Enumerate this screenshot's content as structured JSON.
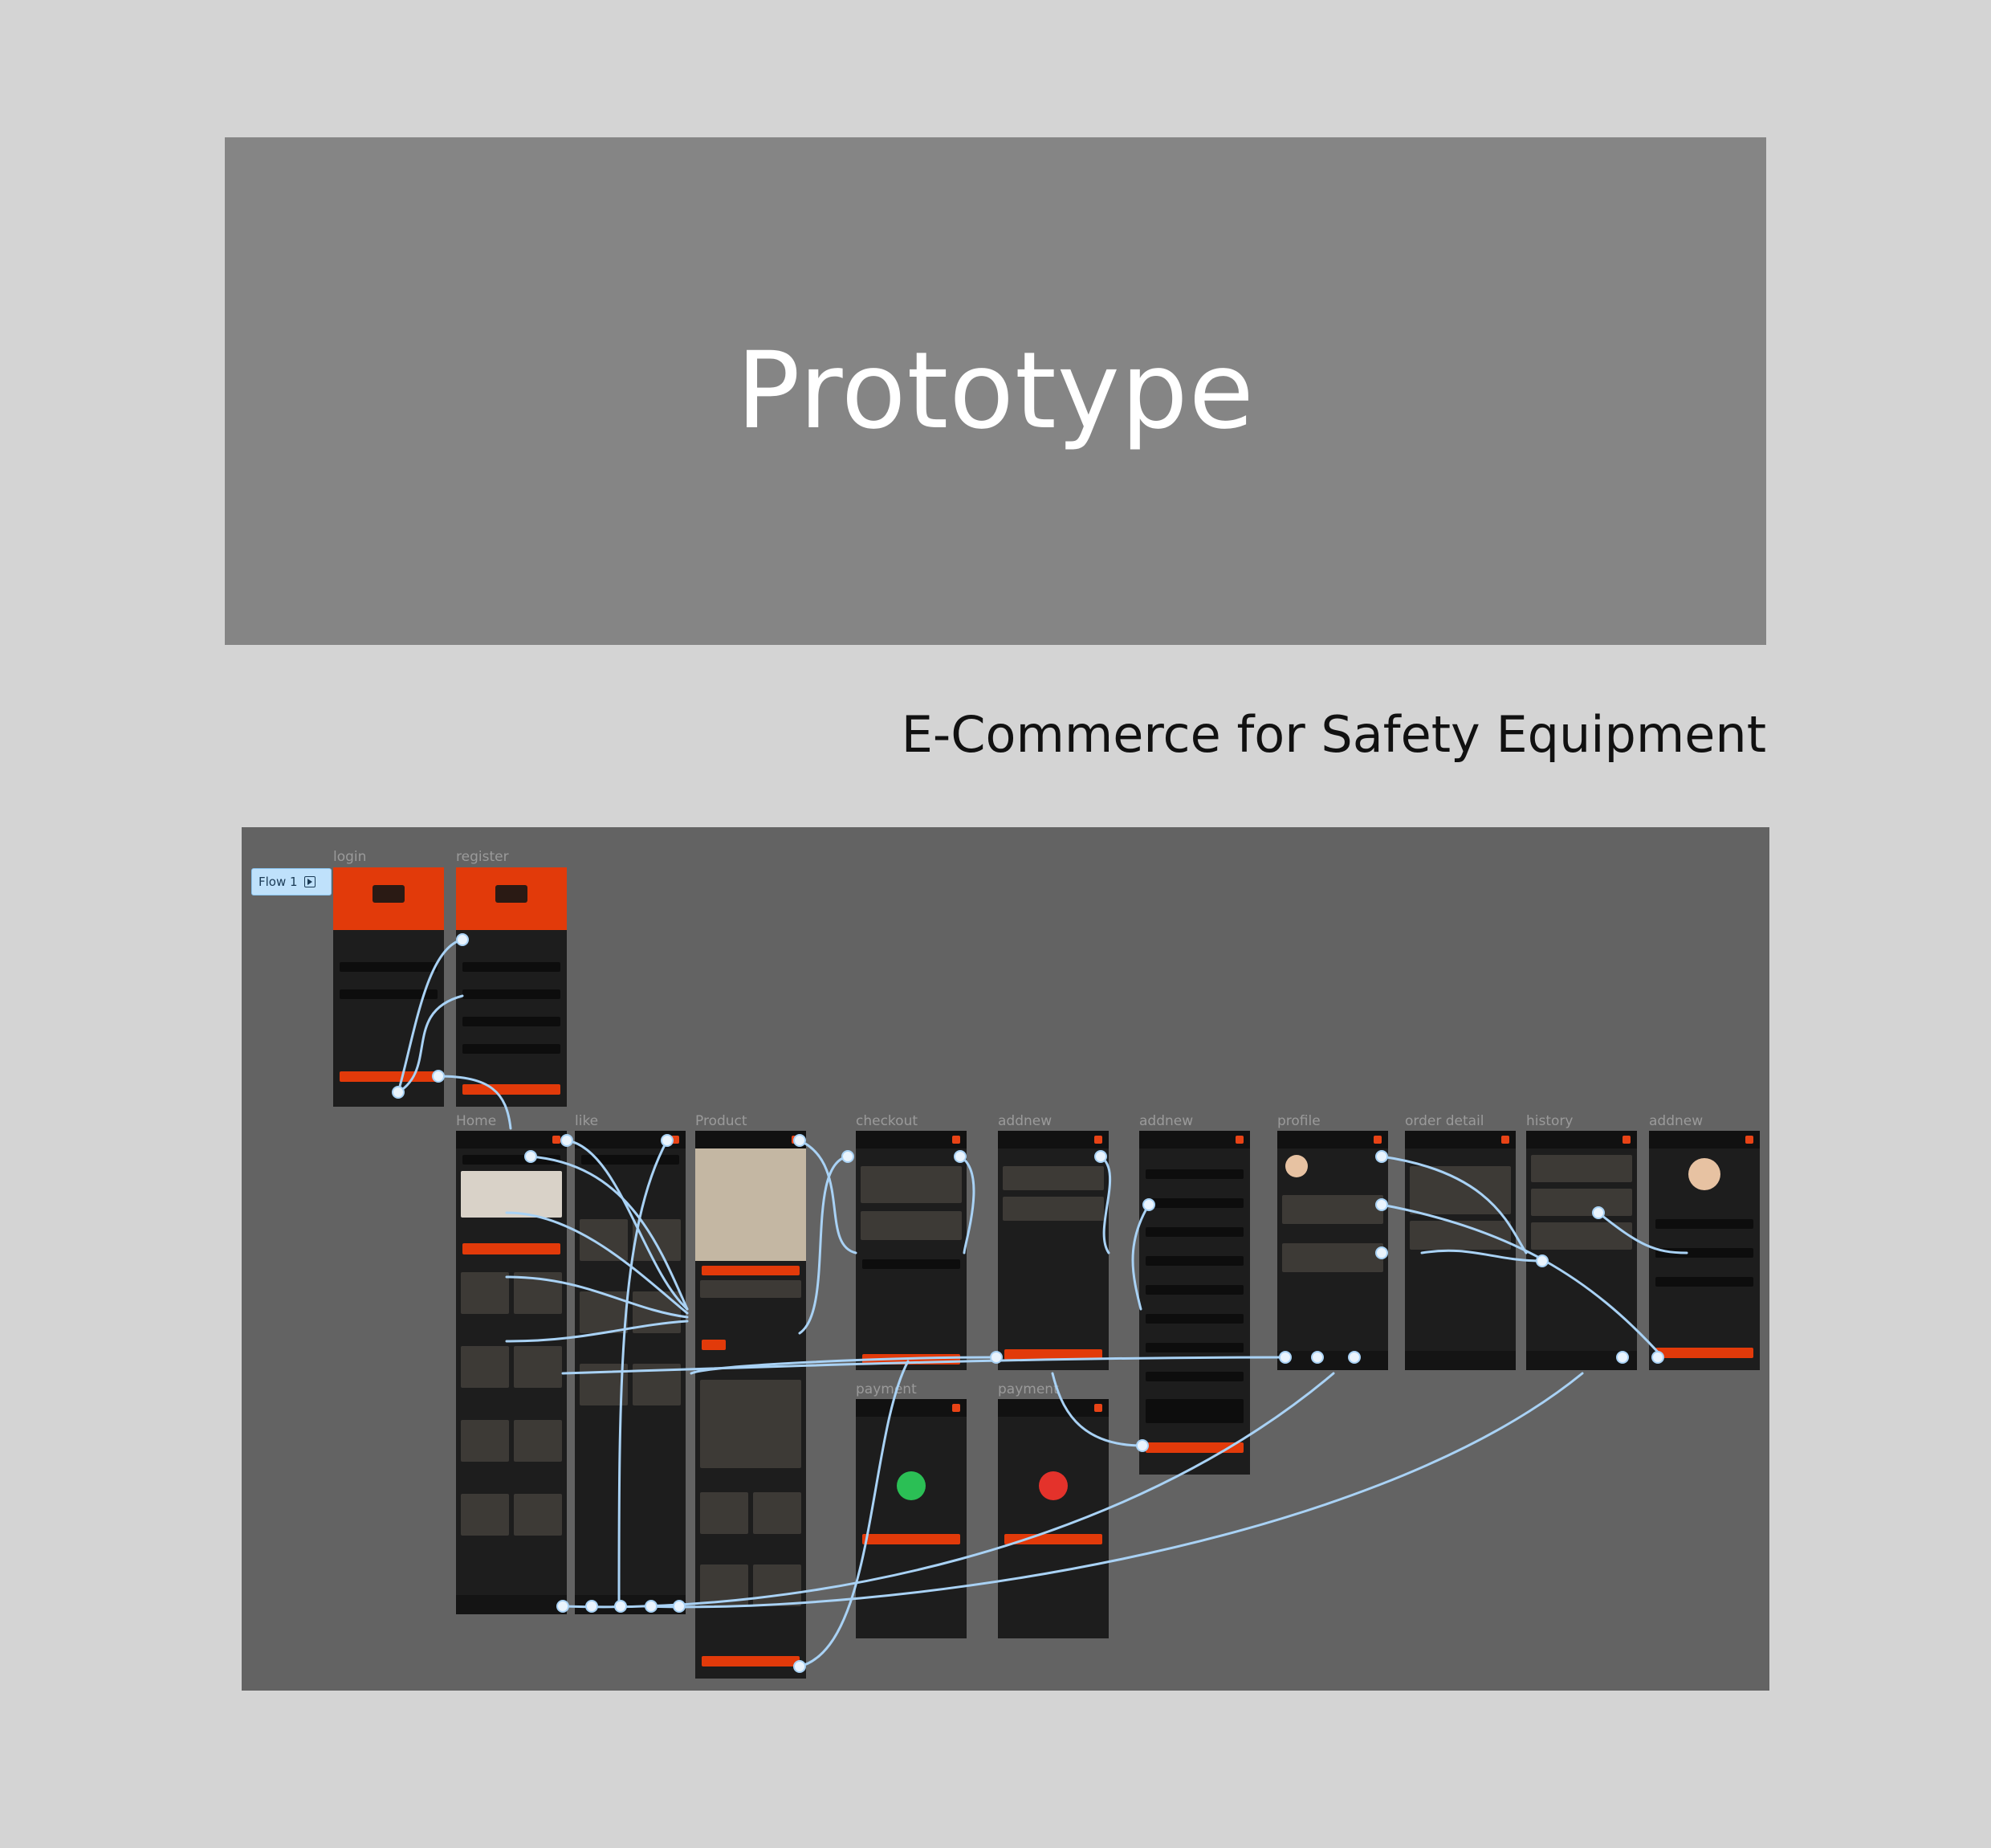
{
  "banner": {
    "title": "Prototype"
  },
  "subtitle": "E-Commerce for Safety Equipment",
  "canvas": {
    "flow_label": "Flow 1",
    "frames": [
      {
        "id": "login",
        "label": "login"
      },
      {
        "id": "register",
        "label": "register"
      },
      {
        "id": "home",
        "label": "Home"
      },
      {
        "id": "like",
        "label": "like"
      },
      {
        "id": "product",
        "label": "Product"
      },
      {
        "id": "checkout",
        "label": "checkout"
      },
      {
        "id": "addnew1",
        "label": "addnew"
      },
      {
        "id": "addnew2",
        "label": "addnew"
      },
      {
        "id": "profile",
        "label": "profile"
      },
      {
        "id": "order-detail",
        "label": "order detail"
      },
      {
        "id": "history",
        "label": "history"
      },
      {
        "id": "addnew3",
        "label": "addnew"
      },
      {
        "id": "payment-success",
        "label": "payment"
      },
      {
        "id": "payment-fail",
        "label": "payment"
      }
    ]
  },
  "colors": {
    "page_bg": "#d4d4d4",
    "banner_bg": "#858585",
    "canvas_bg": "#636363",
    "frame_bg": "#1d1d1d",
    "accent": "#e23a0a",
    "wire": "#a9d2f5",
    "success": "#2bbf55",
    "error": "#e4322b"
  }
}
